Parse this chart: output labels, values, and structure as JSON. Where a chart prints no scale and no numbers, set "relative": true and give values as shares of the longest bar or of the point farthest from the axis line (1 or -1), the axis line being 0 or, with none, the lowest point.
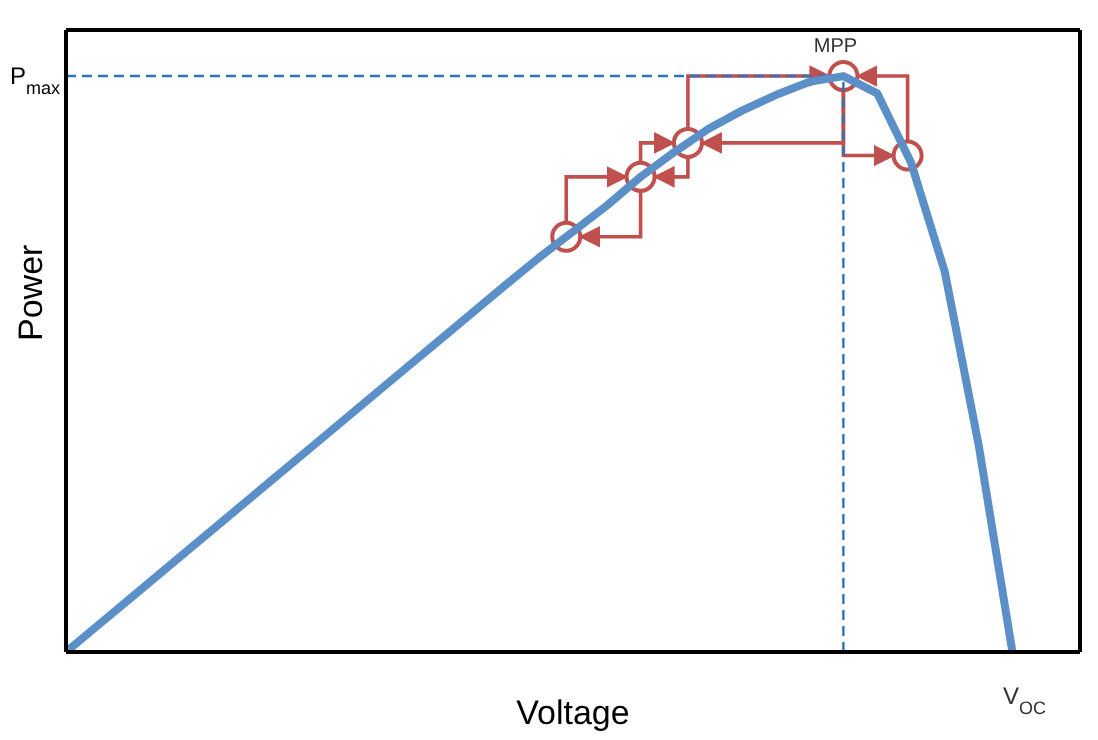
{
  "chart_data": {
    "type": "line",
    "relative": true,
    "xlabel": "Voltage",
    "ylabel": "Power",
    "marker": "none",
    "categories": [
      null,
      null,
      null,
      null,
      null,
      null,
      null,
      null,
      null,
      null,
      null,
      null,
      null,
      null,
      null,
      null,
      null,
      null,
      null,
      null,
      null,
      null,
      null,
      null,
      null,
      null,
      null,
      null,
      null
    ],
    "series": [
      {
        "color": "#5b8fc7",
        "values": [
          0,
          0.049,
          0.098,
          0.147,
          0.196,
          0.245,
          0.294,
          0.343,
          0.392,
          0.441,
          0.49,
          0.539,
          0.588,
          0.637,
          0.685,
          0.73,
          0.775,
          0.825,
          0.868,
          0.908,
          0.94,
          0.967,
          0.99,
          1,
          0.97,
          0.85,
          0.66,
          0.36,
          0
        ]
      }
    ],
    "ref_lines": [
      {
        "axis": "y",
        "value": 1,
        "label": "P$_{max}$",
        "color": "#2e75b6",
        "line_style": "dashed"
      }
    ],
    "annotations": [
      {
        "text": "MPP",
        "y": 1
      },
      "V$_{OC}$"
    ]
  }
}
